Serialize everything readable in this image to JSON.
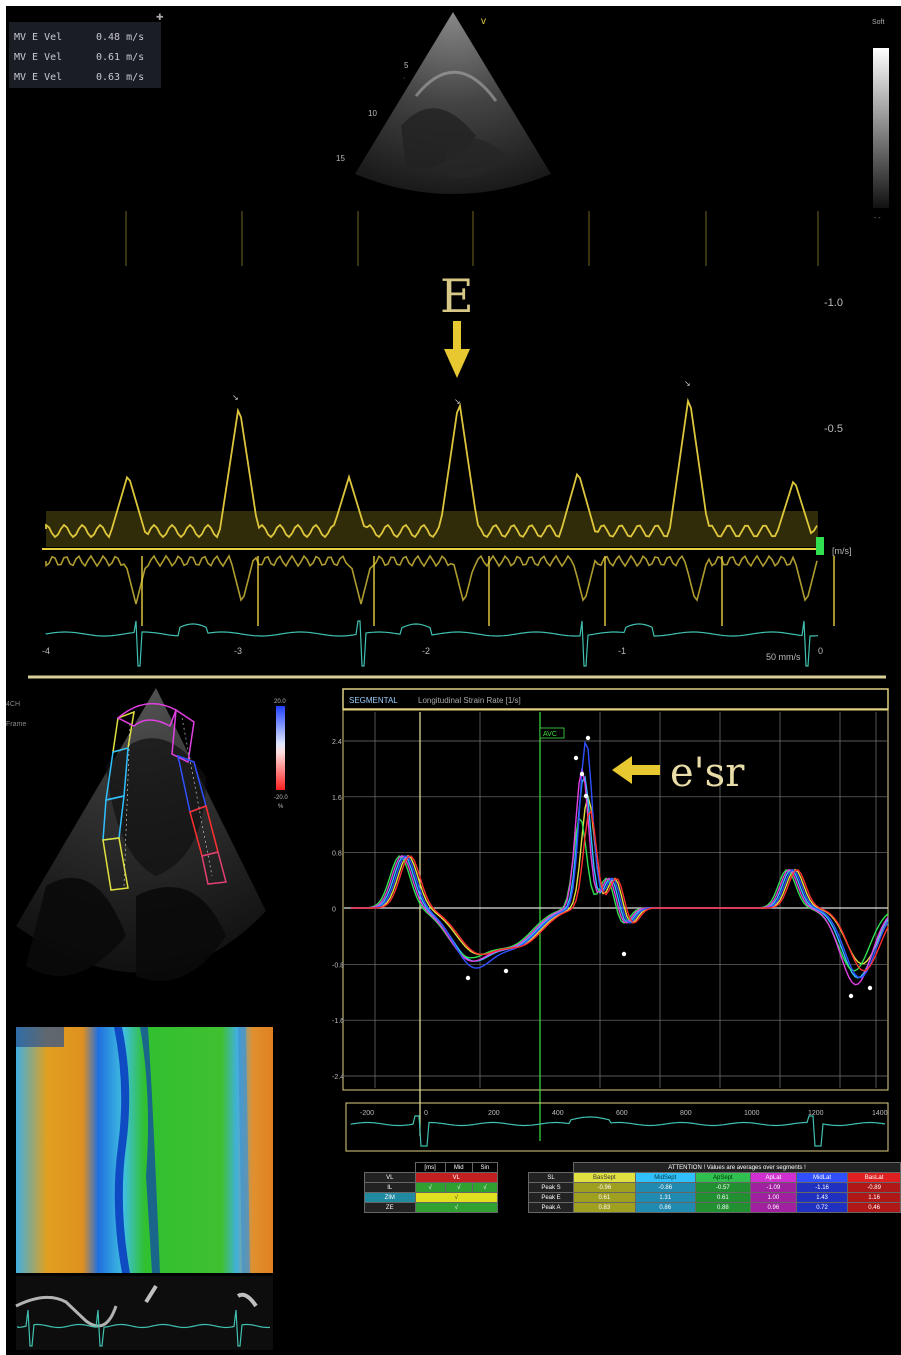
{
  "mv_readout": [
    {
      "label": "MV E Vel",
      "value": "0.48 m/s"
    },
    {
      "label": "MV E Vel",
      "value": "0.61 m/s"
    },
    {
      "label": "MV E Vel",
      "value": "0.63 m/s"
    }
  ],
  "doppler": {
    "peak_label": "E",
    "scale_top": "-1.0",
    "scale_mid": "-0.5",
    "unit": "[m/s]",
    "time_marks": [
      "-4",
      "-3",
      "-2",
      "-1",
      "0"
    ],
    "sweep_label": "50 mm/s",
    "sect_label": "Soft",
    "depth_marks": [
      "5",
      "10",
      "15"
    ]
  },
  "strain_panel": {
    "title_prefix": "SEGMENTAL",
    "title": "Longitudinal Strain Rate [1/s]",
    "peak_label": "e'sr",
    "avc_tag": "AVC",
    "y_ticks": [
      "2.4",
      "1.6",
      "0.8",
      "0",
      "-0.8",
      "-1.6",
      "-2.4"
    ],
    "x_ticks": [
      "-200",
      "0",
      "200",
      "400",
      "600",
      "800",
      "1000",
      "1200",
      "1400"
    ],
    "colorbar_top": "20.0",
    "colorbar_bottom": "-20.0",
    "colorbar_unit": "%"
  },
  "colors": {
    "doppler": "#e8d040",
    "ecg": "#40c0b0",
    "annot": "#d8c888",
    "series": [
      "#e0e040",
      "#30c0ff",
      "#30e050",
      "#e040e0",
      "#3050ff",
      "#ff3030"
    ]
  },
  "events_table": {
    "headers": [
      "[ms]",
      "Mid",
      "Sin"
    ],
    "rows": [
      {
        "label": "VL",
        "c1": "",
        "c2": "VL",
        "c3": ""
      },
      {
        "label": "IL",
        "c1": "√",
        "c2": "√",
        "c3": "√"
      },
      {
        "label": "ZIM",
        "c1": "",
        "c2": "√",
        "c3": ""
      },
      {
        "label": "ZE",
        "c1": "",
        "c2": "√",
        "c3": ""
      }
    ]
  },
  "peaks_table": {
    "title": "ATTENTION ! Values are averages over segments !",
    "headers": [
      "BasSept",
      "MidSept",
      "ApSept",
      "ApLat",
      "MidLat",
      "BasLat"
    ],
    "rows": [
      {
        "label": "Peak S",
        "values": [
          "-0.96",
          "-0.86",
          "-0.57",
          "-1.09",
          "-1.16",
          "-0.89"
        ]
      },
      {
        "label": "Peak E",
        "values": [
          "0.61",
          "1.31",
          "0.61",
          "1.00",
          "1.43",
          "1.16"
        ]
      },
      {
        "label": "Peak A",
        "values": [
          "0.83",
          "0.86",
          "0.88",
          "0.96",
          "0.72",
          "0.46"
        ]
      }
    ],
    "row_label_header": "SL"
  }
}
